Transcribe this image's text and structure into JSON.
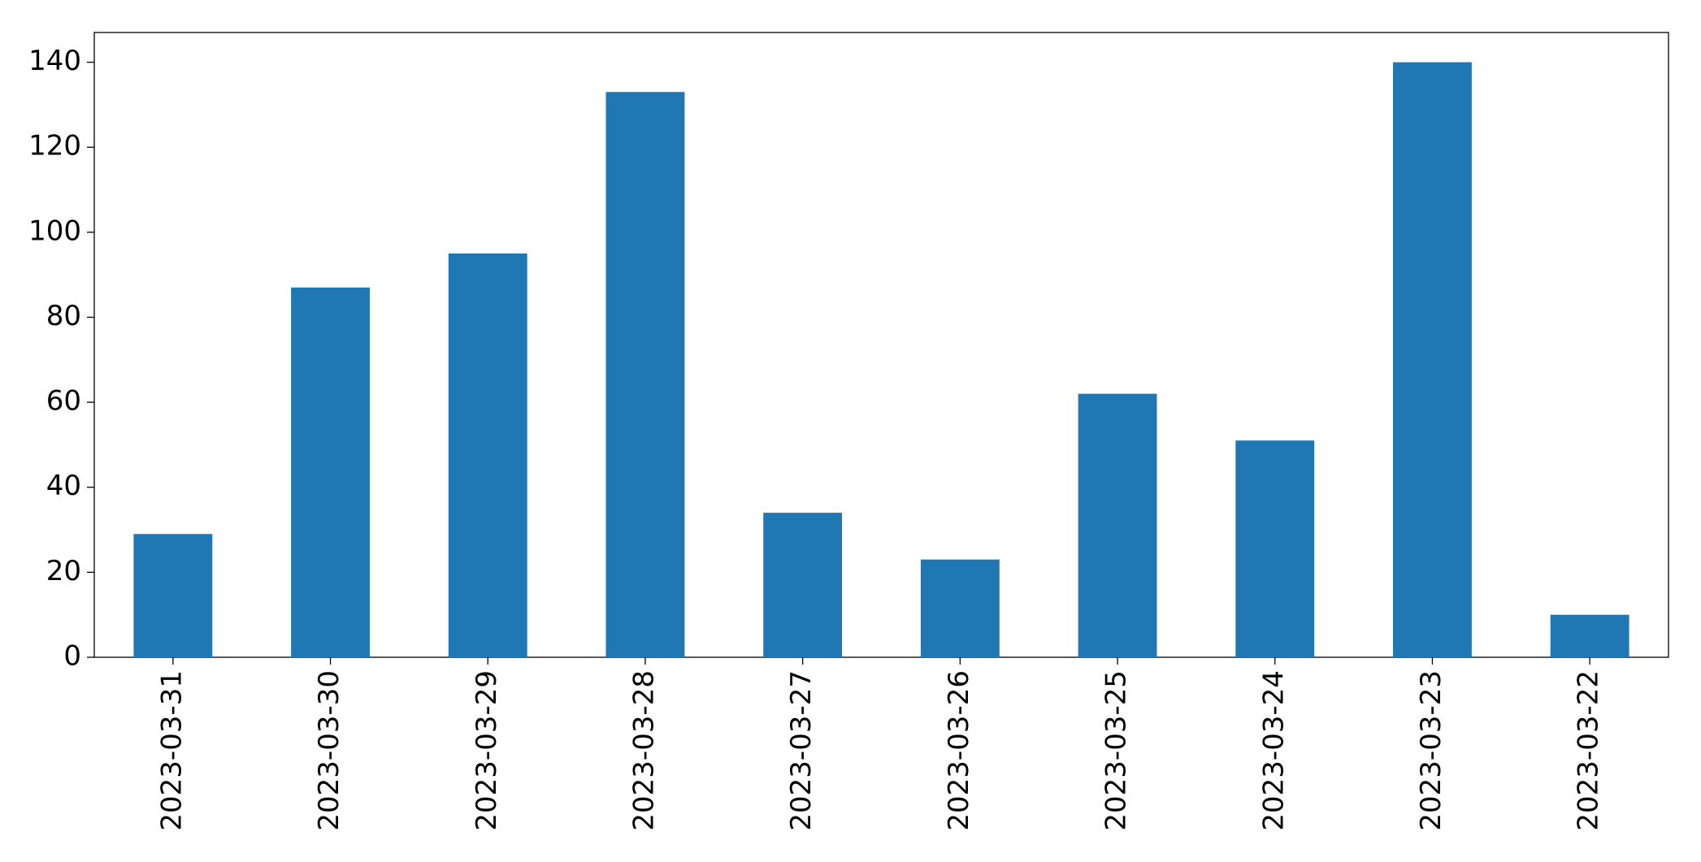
{
  "chart_data": {
    "type": "bar",
    "categories": [
      "2023-03-31",
      "2023-03-30",
      "2023-03-29",
      "2023-03-28",
      "2023-03-27",
      "2023-03-26",
      "2023-03-25",
      "2023-03-24",
      "2023-03-23",
      "2023-03-22"
    ],
    "values": [
      29,
      87,
      95,
      133,
      34,
      23,
      62,
      51,
      140,
      10
    ],
    "color": "#1f77b4",
    "ylim": [
      0,
      147
    ],
    "yticks": [
      0,
      20,
      40,
      60,
      80,
      100,
      120,
      140
    ],
    "grid": false
  }
}
